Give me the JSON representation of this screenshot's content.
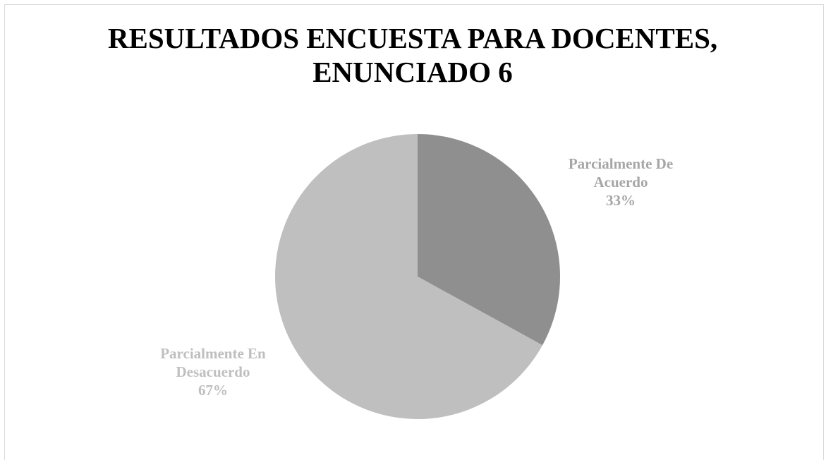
{
  "chart_data": {
    "type": "pie",
    "title": "RESULTADOS ENCUESTA PARA  DOCENTES, ENUNCIADO 6",
    "categories": [
      "Parcialmente De Acuerdo",
      "Parcialmente En Desacuerdo"
    ],
    "values": [
      33,
      67
    ],
    "value_labels": [
      "33%",
      "67%"
    ],
    "colors": [
      "#8f8f8f",
      "#bfbfbf"
    ]
  }
}
